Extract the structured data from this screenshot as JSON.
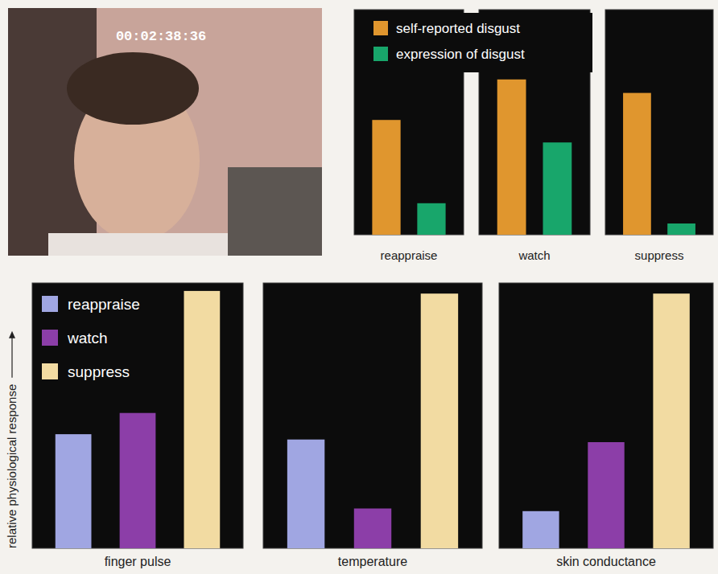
{
  "photo": {
    "timestamp": "00:02:38:36"
  },
  "chart_data": [
    {
      "type": "bar",
      "categories": [
        "reappraise",
        "watch",
        "suppress"
      ],
      "series": [
        {
          "name": "self-reported disgust",
          "color": "#e0962e",
          "values": [
            51,
            69,
            63
          ]
        },
        {
          "name": "expression of disgust",
          "color": "#18a66b",
          "values": [
            14,
            41,
            5
          ]
        }
      ],
      "ylim": [
        0,
        100
      ],
      "tick_labels": false,
      "legend": "top-left"
    },
    {
      "type": "bar",
      "y_label": "relative physiological response",
      "categories": [
        "finger pulse",
        "temperature",
        "skin conductance"
      ],
      "series": [
        {
          "name": "reappraise",
          "color": "#a0a6e2",
          "values": [
            43,
            41,
            14
          ]
        },
        {
          "name": "watch",
          "color": "#8c3ea8",
          "values": [
            51,
            15,
            40
          ]
        },
        {
          "name": "suppress",
          "color": "#f2dba2",
          "values": [
            97,
            96,
            96
          ]
        }
      ],
      "ylim": [
        0,
        100
      ],
      "tick_labels": false,
      "legend": "top-left"
    }
  ]
}
